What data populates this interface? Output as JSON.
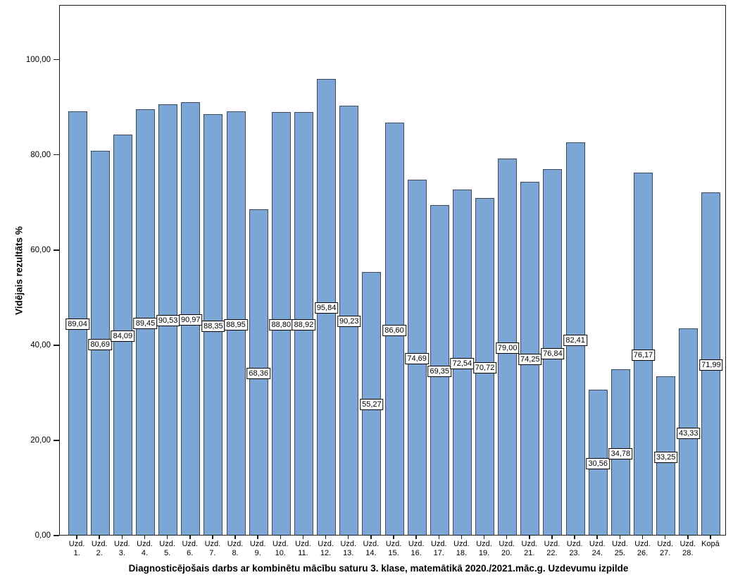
{
  "figure": {
    "y_axis_title": "Vidējais rezultāts %",
    "title": "Diagnosticējošais darbs ar kombinētu mācību saturu 3. klase, matemātikā 2020./2021.māc.g. Uzdevumu izpilde"
  },
  "chart_data": {
    "type": "bar",
    "title": "Diagnosticējošais darbs ar kombinētu mācību saturu 3. klase, matemātikā 2020./2021.māc.g. Uzdevumu izpilde",
    "xlabel": "",
    "ylabel": "Vidējais rezultāts %",
    "ylim": [
      0,
      111.5
    ],
    "grid": false,
    "legend": "none",
    "bar_color": "#7CA6D6",
    "bar_border_color": "#3c4c60",
    "y_ticks": [
      {
        "value": 0,
        "label": "0,00"
      },
      {
        "value": 20,
        "label": "20,00"
      },
      {
        "value": 40,
        "label": "40,00"
      },
      {
        "value": 60,
        "label": "60,00"
      },
      {
        "value": 80,
        "label": "80,00"
      },
      {
        "value": 100,
        "label": "100,00"
      }
    ],
    "categories": [
      [
        "Uzd.",
        "1."
      ],
      [
        "Uzd.",
        "2."
      ],
      [
        "Uzd.",
        "3."
      ],
      [
        "Uzd.",
        "4."
      ],
      [
        "Uzd.",
        "5."
      ],
      [
        "Uzd.",
        "6."
      ],
      [
        "Uzd.",
        "7."
      ],
      [
        "Uzd.",
        "8."
      ],
      [
        "Uzd.",
        "9."
      ],
      [
        "Uzd.",
        "10."
      ],
      [
        "Uzd.",
        "11."
      ],
      [
        "Uzd.",
        "12."
      ],
      [
        "Uzd.",
        "13."
      ],
      [
        "Uzd.",
        "14."
      ],
      [
        "Uzd.",
        "15."
      ],
      [
        "Uzd.",
        "16."
      ],
      [
        "Uzd.",
        "17."
      ],
      [
        "Uzd.",
        "18."
      ],
      [
        "Uzd.",
        "19."
      ],
      [
        "Uzd.",
        "20."
      ],
      [
        "Uzd.",
        "21."
      ],
      [
        "Uzd.",
        "22."
      ],
      [
        "Uzd.",
        "23."
      ],
      [
        "Uzd.",
        "24."
      ],
      [
        "Uzd.",
        "25."
      ],
      [
        "Uzd.",
        "26."
      ],
      [
        "Uzd.",
        "27."
      ],
      [
        "Uzd.",
        "28."
      ],
      [
        "Kopā",
        ""
      ]
    ],
    "values": [
      89.04,
      80.69,
      84.09,
      89.45,
      90.53,
      90.97,
      88.35,
      88.95,
      68.36,
      88.8,
      88.92,
      95.84,
      90.23,
      55.27,
      86.6,
      74.69,
      69.35,
      72.54,
      70.72,
      79.0,
      74.25,
      76.84,
      82.41,
      30.56,
      34.78,
      76.17,
      33.25,
      43.33,
      71.99
    ],
    "value_labels": [
      "89,04",
      "80,69",
      "84,09",
      "89,45",
      "90,53",
      "90,97",
      "88,35",
      "88,95",
      "68,36",
      "88,80",
      "88,92",
      "95,84",
      "90,23",
      "55,27",
      "86,60",
      "74,69",
      "69,35",
      "72,54",
      "70,72",
      "79,00",
      "74,25",
      "76,84",
      "82,41",
      "30,56",
      "34,78",
      "76,17",
      "33,25",
      "43,33",
      "71,99"
    ]
  }
}
